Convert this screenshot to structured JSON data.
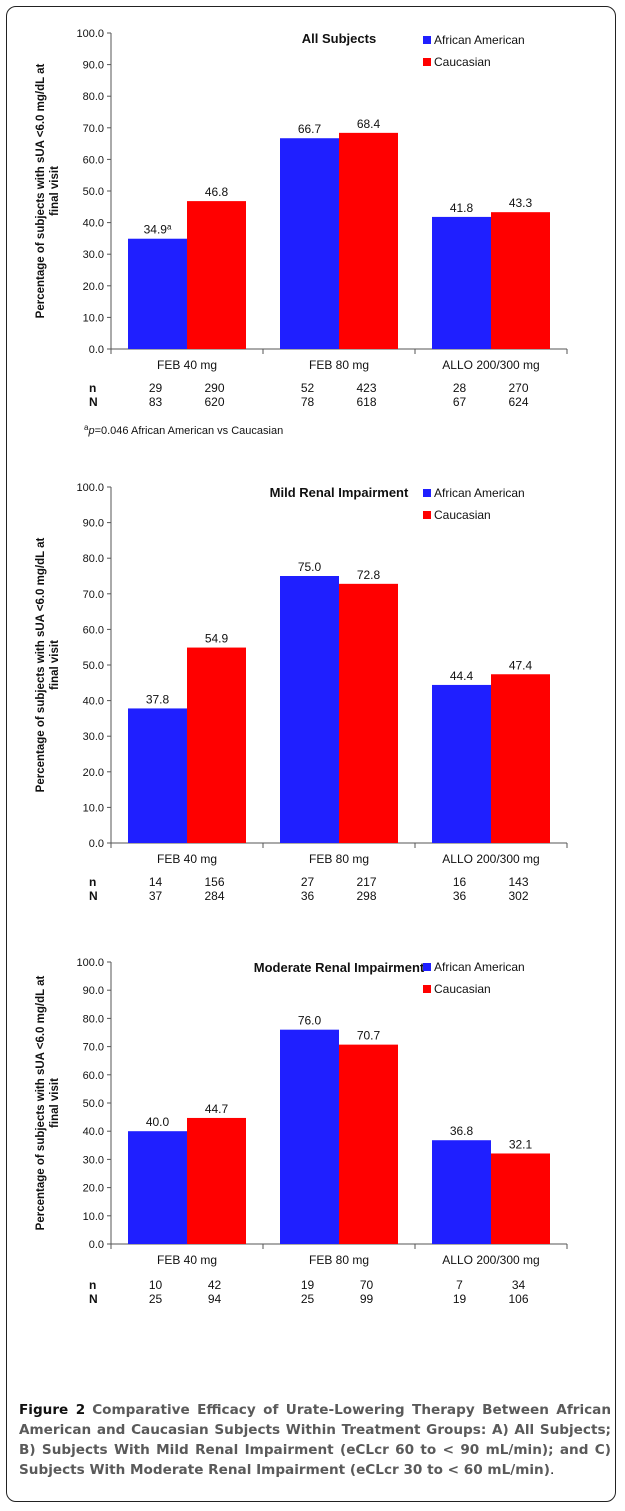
{
  "colors": {
    "african_american": "#1f1fff",
    "caucasian": "#ff0000"
  },
  "chart_data": [
    {
      "type": "bar",
      "title": "All Subjects",
      "ylabel_line1": "Percentage of subjects with sUA <6.0 mg/dL at",
      "ylabel_line2": "final visit",
      "ylim": [
        0,
        100
      ],
      "yticks": [
        "0.0",
        "10.0",
        "20.0",
        "30.0",
        "40.0",
        "50.0",
        "60.0",
        "70.0",
        "80.0",
        "90.0",
        "100.0"
      ],
      "categories": [
        "FEB 40 mg",
        "FEB 80 mg",
        "ALLO 200/300 mg"
      ],
      "series": [
        {
          "name": "African American",
          "values": [
            34.9,
            66.7,
            41.8
          ],
          "labels": [
            "34.9",
            "66.7",
            "41.8"
          ]
        },
        {
          "name": "Caucasian",
          "values": [
            46.8,
            68.4,
            43.3
          ],
          "labels": [
            "46.8",
            "68.4",
            "43.3"
          ]
        }
      ],
      "superscript": "a",
      "legend_position": "top-right",
      "counts": {
        "n_label": "n",
        "N_label": "N",
        "n": [
          [
            "29",
            "290"
          ],
          [
            "52",
            "423"
          ],
          [
            "28",
            "270"
          ]
        ],
        "N": [
          [
            "83",
            "620"
          ],
          [
            "78",
            "618"
          ],
          [
            "67",
            "624"
          ]
        ]
      },
      "footnote": {
        "sup": "a",
        "p": "p",
        "rest": "=0.046 African American vs Caucasian"
      }
    },
    {
      "type": "bar",
      "title": "Mild Renal Impairment",
      "ylabel_line1": "Percentage of subjects with sUA <6.0 mg/dL at",
      "ylabel_line2": "final visit",
      "ylim": [
        0,
        100
      ],
      "yticks": [
        "0.0",
        "10.0",
        "20.0",
        "30.0",
        "40.0",
        "50.0",
        "60.0",
        "70.0",
        "80.0",
        "90.0",
        "100.0"
      ],
      "categories": [
        "FEB 40 mg",
        "FEB 80 mg",
        "ALLO 200/300 mg"
      ],
      "series": [
        {
          "name": "African American",
          "values": [
            37.8,
            75.0,
            44.4
          ],
          "labels": [
            "37.8",
            "75.0",
            "44.4"
          ]
        },
        {
          "name": "Caucasian",
          "values": [
            54.9,
            72.8,
            47.4
          ],
          "labels": [
            "54.9",
            "72.8",
            "47.4"
          ]
        }
      ],
      "legend_position": "top-right",
      "counts": {
        "n_label": "n",
        "N_label": "N",
        "n": [
          [
            "14",
            "156"
          ],
          [
            "27",
            "217"
          ],
          [
            "16",
            "143"
          ]
        ],
        "N": [
          [
            "37",
            "284"
          ],
          [
            "36",
            "298"
          ],
          [
            "36",
            "302"
          ]
        ]
      }
    },
    {
      "type": "bar",
      "title": "Moderate Renal Impairment",
      "ylabel_line1": "Percentage of subjects with sUA <6.0 mg/dL at",
      "ylabel_line2": "final visit",
      "ylim": [
        0,
        100
      ],
      "yticks": [
        "0.0",
        "10.0",
        "20.0",
        "30.0",
        "40.0",
        "50.0",
        "60.0",
        "70.0",
        "80.0",
        "90.0",
        "100.0"
      ],
      "categories": [
        "FEB 40 mg",
        "FEB 80 mg",
        "ALLO 200/300 mg"
      ],
      "series": [
        {
          "name": "African American",
          "values": [
            40.0,
            76.0,
            36.8
          ],
          "labels": [
            "40.0",
            "76.0",
            "36.8"
          ]
        },
        {
          "name": "Caucasian",
          "values": [
            44.7,
            70.7,
            32.1
          ],
          "labels": [
            "44.7",
            "70.7",
            "32.1"
          ]
        }
      ],
      "legend_position": "top-right",
      "counts": {
        "n_label": "n",
        "N_label": "N",
        "n": [
          [
            "10",
            "42"
          ],
          [
            "19",
            "70"
          ],
          [
            "7",
            "34"
          ]
        ],
        "N": [
          [
            "25",
            "94"
          ],
          [
            "25",
            "99"
          ],
          [
            "19",
            "106"
          ]
        ]
      }
    }
  ],
  "caption": {
    "label": "Figure 2",
    "title": "Comparative Efficacy of Urate-Lowering Therapy Between African American and Caucasian Subjects Within Treatment Groups: A) All Subjects; B) Subjects With Mild Renal Impairment (eCLcr 60 to < 90 mL/min); and C) Subjects With Moderate Renal Impairment (eCLcr 30 to < 60 mL/min)",
    "end": "."
  }
}
